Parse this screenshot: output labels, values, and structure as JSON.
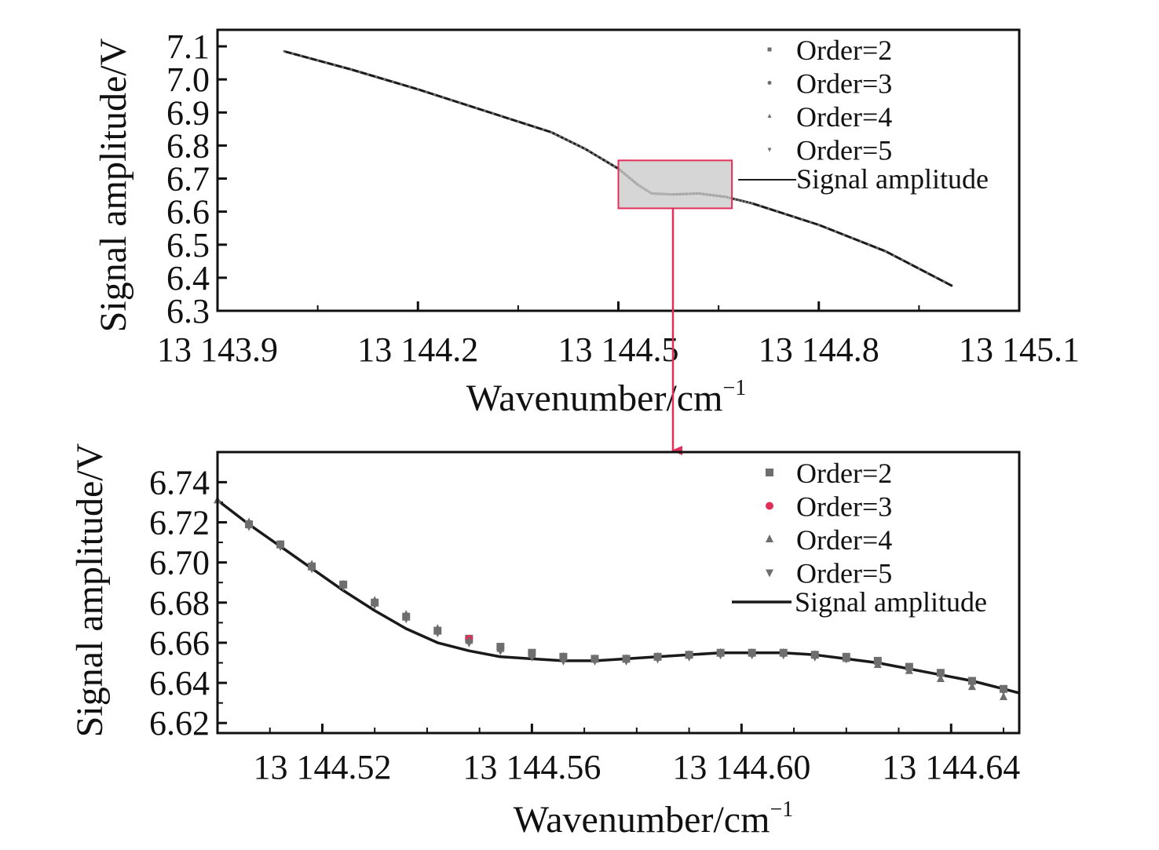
{
  "colors": {
    "line": "#1a1a1a",
    "marker_gray": "#6e6e6e",
    "marker_red": "#e0305a",
    "arrow": "#e0305a",
    "zoom_fill": "#c8c8c8",
    "zoom_edge": "#e0305a"
  },
  "chart_data": [
    {
      "type": "line",
      "xlabel": "Wavenumber/cm",
      "xlabel_sup": "−1",
      "ylabel": "Signal amplitude/V",
      "xlim": [
        13143.9,
        13145.1
      ],
      "ylim": [
        6.3,
        7.15
      ],
      "xticks": [
        {
          "value": 13143.9,
          "label": "13 143.9"
        },
        {
          "value": 13144.2,
          "label": "13 144.2"
        },
        {
          "value": 13144.5,
          "label": "13 144.5"
        },
        {
          "value": 13144.8,
          "label": "13 144.8"
        },
        {
          "value": 13145.1,
          "label": "13 145.1"
        }
      ],
      "xminor": [
        13144.05,
        13144.35,
        13144.65,
        13144.95
      ],
      "yticks": [
        {
          "value": 6.3,
          "label": "6.3"
        },
        {
          "value": 6.4,
          "label": "6.4"
        },
        {
          "value": 6.5,
          "label": "6.5"
        },
        {
          "value": 6.6,
          "label": "6.6"
        },
        {
          "value": 6.7,
          "label": "6.7"
        },
        {
          "value": 6.8,
          "label": "6.8"
        },
        {
          "value": 6.9,
          "label": "6.9"
        },
        {
          "value": 7.0,
          "label": "7.0"
        },
        {
          "value": 7.1,
          "label": "7.1"
        }
      ],
      "series": [
        {
          "name": "Signal amplitude",
          "style": "line",
          "x": [
            13144.0,
            13144.1,
            13144.2,
            13144.3,
            13144.4,
            13144.45,
            13144.5,
            13144.53,
            13144.55,
            13144.58,
            13144.62,
            13144.66,
            13144.7,
            13144.8,
            13144.9,
            13145.0
          ],
          "y": [
            7.085,
            7.03,
            6.97,
            6.905,
            6.84,
            6.79,
            6.73,
            6.68,
            6.655,
            6.652,
            6.655,
            6.645,
            6.625,
            6.56,
            6.48,
            6.375
          ]
        }
      ],
      "marker_series": [
        {
          "name": "Order=2",
          "marker": "square"
        },
        {
          "name": "Order=3",
          "marker": "circle"
        },
        {
          "name": "Order=4",
          "marker": "triangle-up"
        },
        {
          "name": "Order=5",
          "marker": "triangle-down"
        }
      ],
      "legend": "top-right",
      "zoom_box": {
        "x": [
          13144.5,
          13144.67
        ],
        "y": [
          6.61,
          6.755
        ]
      }
    },
    {
      "type": "scatter",
      "xlabel": "Wavenumber/cm",
      "xlabel_sup": "−1",
      "ylabel": "Signal amplitude/V",
      "xlim": [
        13144.5,
        13144.653
      ],
      "ylim": [
        6.615,
        6.755
      ],
      "xticks": [
        {
          "value": 13144.52,
          "label": "13 144.52"
        },
        {
          "value": 13144.56,
          "label": "13 144.56"
        },
        {
          "value": 13144.6,
          "label": "13 144.60"
        },
        {
          "value": 13144.64,
          "label": "13 144.64"
        }
      ],
      "xminor": [
        13144.51,
        13144.53,
        13144.54,
        13144.55,
        13144.57,
        13144.58,
        13144.59,
        13144.61,
        13144.62,
        13144.63,
        13144.65
      ],
      "yticks": [
        {
          "value": 6.62,
          "label": "6.62"
        },
        {
          "value": 6.64,
          "label": "6.64"
        },
        {
          "value": 6.66,
          "label": "6.66"
        },
        {
          "value": 6.68,
          "label": "6.68"
        },
        {
          "value": 6.7,
          "label": "6.70"
        },
        {
          "value": 6.72,
          "label": "6.72"
        },
        {
          "value": 6.74,
          "label": "6.74"
        }
      ],
      "yminor": [
        6.63,
        6.65,
        6.67,
        6.69,
        6.71,
        6.73
      ],
      "series": [
        {
          "name": "Signal amplitude",
          "style": "line",
          "x": [
            13144.5,
            13144.506,
            13144.512,
            13144.518,
            13144.524,
            13144.53,
            13144.536,
            13144.542,
            13144.548,
            13144.554,
            13144.56,
            13144.566,
            13144.572,
            13144.578,
            13144.584,
            13144.59,
            13144.596,
            13144.602,
            13144.608,
            13144.614,
            13144.62,
            13144.626,
            13144.632,
            13144.638,
            13144.644,
            13144.653
          ],
          "y": [
            6.731,
            6.719,
            6.708,
            6.697,
            6.686,
            6.676,
            6.667,
            6.66,
            6.656,
            6.653,
            6.652,
            6.651,
            6.651,
            6.652,
            6.653,
            6.654,
            6.655,
            6.655,
            6.655,
            6.654,
            6.652,
            6.65,
            6.647,
            6.644,
            6.641,
            6.635
          ]
        },
        {
          "name": "Order=2",
          "style": "markers",
          "marker": "square",
          "x": [
            13144.506,
            13144.512,
            13144.518,
            13144.524,
            13144.53,
            13144.536,
            13144.542,
            13144.548,
            13144.554,
            13144.56,
            13144.566,
            13144.572,
            13144.578,
            13144.584,
            13144.59,
            13144.596,
            13144.602,
            13144.608,
            13144.614,
            13144.62,
            13144.626,
            13144.632,
            13144.638,
            13144.644,
            13144.65
          ],
          "y": [
            6.719,
            6.709,
            6.698,
            6.689,
            6.68,
            6.673,
            6.666,
            6.662,
            6.658,
            6.655,
            6.653,
            6.652,
            6.652,
            6.653,
            6.654,
            6.655,
            6.655,
            6.655,
            6.654,
            6.653,
            6.651,
            6.648,
            6.645,
            6.641,
            6.637
          ]
        },
        {
          "name": "Order=3",
          "style": "markers",
          "marker": "circle",
          "x": [
            13144.548
          ],
          "y": [
            6.662
          ]
        },
        {
          "name": "Order=4",
          "style": "markers",
          "marker": "triangle-up",
          "x": [
            13144.5,
            13144.506,
            13144.512,
            13144.518,
            13144.524,
            13144.53,
            13144.536,
            13144.542,
            13144.548,
            13144.554,
            13144.56,
            13144.566,
            13144.572,
            13144.578,
            13144.584,
            13144.59,
            13144.596,
            13144.602,
            13144.608,
            13144.614,
            13144.62,
            13144.626,
            13144.632,
            13144.638,
            13144.644,
            13144.65
          ],
          "y": [
            6.731,
            6.72,
            6.709,
            6.699,
            6.689,
            6.681,
            6.674,
            6.667,
            6.661,
            6.657,
            6.654,
            6.653,
            6.652,
            6.652,
            6.653,
            6.654,
            6.655,
            6.655,
            6.655,
            6.654,
            6.652,
            6.649,
            6.646,
            6.642,
            6.638,
            6.633
          ]
        },
        {
          "name": "Order=5",
          "style": "markers",
          "marker": "triangle-down",
          "x": [
            13144.506,
            13144.512,
            13144.518,
            13144.524,
            13144.53,
            13144.536,
            13144.542,
            13144.548,
            13144.554,
            13144.56,
            13144.566,
            13144.572,
            13144.578,
            13144.584,
            13144.59,
            13144.596,
            13144.602,
            13144.608,
            13144.614,
            13144.62,
            13144.626,
            13144.632,
            13144.638,
            13144.644,
            13144.65
          ],
          "y": [
            6.718,
            6.708,
            6.697,
            6.688,
            6.679,
            6.672,
            6.665,
            6.66,
            6.656,
            6.653,
            6.651,
            6.651,
            6.651,
            6.652,
            6.653,
            6.654,
            6.654,
            6.654,
            6.653,
            6.652,
            6.65,
            6.647,
            6.644,
            6.64,
            6.636
          ]
        }
      ],
      "legend": "top-right"
    }
  ]
}
